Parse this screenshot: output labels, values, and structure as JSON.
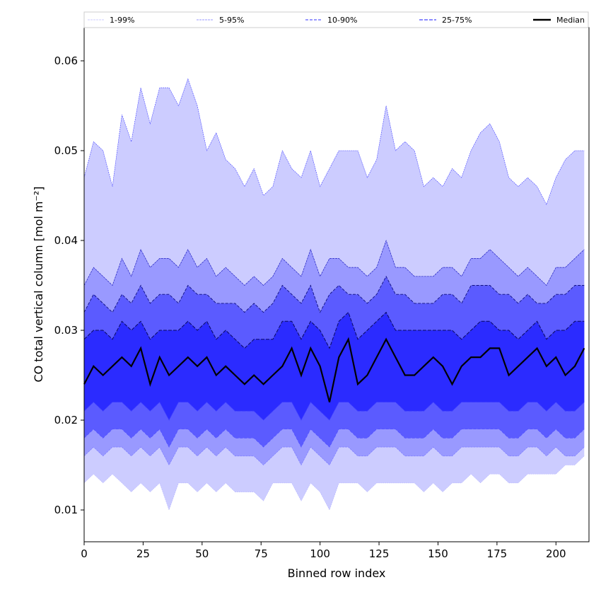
{
  "chart_data": {
    "type": "area",
    "xlabel": "Binned row index",
    "ylabel": "CO total vertical column [mol m⁻²]",
    "xlim": [
      0,
      214
    ],
    "ylim": [
      0.00646,
      0.0637
    ],
    "grid": false,
    "legend_placement": "top",
    "x_ticks": [
      "0",
      "25",
      "50",
      "75",
      "100",
      "125",
      "150",
      "175",
      "200"
    ],
    "y_ticks": [
      "0.01",
      "0.02",
      "0.03",
      "0.04",
      "0.05",
      "0.06"
    ],
    "legend": [
      "1-99%",
      "5-95%",
      "10-90%",
      "25-75%",
      "Median"
    ],
    "colors": {
      "band_1_99": "#ccccff",
      "band_5_95": "#9999ff",
      "band_10_90": "#5b5bff",
      "band_25_75": "#2b2bff",
      "median": "#000000"
    },
    "x_step": 4,
    "x_start": 0,
    "series": [
      {
        "name": "p99",
        "values": [
          0.047,
          0.051,
          0.05,
          0.046,
          0.054,
          0.051,
          0.057,
          0.053,
          0.057,
          0.057,
          0.055,
          0.058,
          0.055,
          0.05,
          0.052,
          0.049,
          0.048,
          0.046,
          0.048,
          0.045,
          0.046,
          0.05,
          0.048,
          0.047,
          0.05,
          0.046,
          0.048,
          0.05,
          0.05,
          0.05,
          0.047,
          0.049,
          0.055,
          0.05,
          0.051,
          0.05,
          0.046,
          0.047,
          0.046,
          0.048,
          0.047,
          0.05,
          0.052,
          0.053,
          0.051,
          0.047,
          0.046,
          0.047,
          0.046,
          0.044,
          0.047,
          0.049,
          0.05,
          0.05
        ]
      },
      {
        "name": "p95",
        "values": [
          0.035,
          0.037,
          0.036,
          0.035,
          0.038,
          0.036,
          0.039,
          0.037,
          0.038,
          0.038,
          0.037,
          0.039,
          0.037,
          0.038,
          0.036,
          0.037,
          0.036,
          0.035,
          0.036,
          0.035,
          0.036,
          0.038,
          0.037,
          0.036,
          0.039,
          0.036,
          0.038,
          0.038,
          0.037,
          0.037,
          0.036,
          0.037,
          0.04,
          0.037,
          0.037,
          0.036,
          0.036,
          0.036,
          0.037,
          0.037,
          0.036,
          0.038,
          0.038,
          0.039,
          0.038,
          0.037,
          0.036,
          0.037,
          0.036,
          0.035,
          0.037,
          0.037,
          0.038,
          0.039
        ]
      },
      {
        "name": "p90",
        "values": [
          0.032,
          0.034,
          0.033,
          0.032,
          0.034,
          0.033,
          0.035,
          0.033,
          0.034,
          0.034,
          0.033,
          0.035,
          0.034,
          0.034,
          0.033,
          0.033,
          0.033,
          0.032,
          0.033,
          0.032,
          0.033,
          0.035,
          0.034,
          0.033,
          0.035,
          0.032,
          0.034,
          0.035,
          0.034,
          0.034,
          0.033,
          0.034,
          0.036,
          0.034,
          0.034,
          0.033,
          0.033,
          0.033,
          0.034,
          0.034,
          0.033,
          0.035,
          0.035,
          0.035,
          0.034,
          0.034,
          0.033,
          0.034,
          0.033,
          0.033,
          0.034,
          0.034,
          0.035,
          0.035
        ]
      },
      {
        "name": "p75",
        "values": [
          0.029,
          0.03,
          0.03,
          0.029,
          0.031,
          0.03,
          0.031,
          0.029,
          0.03,
          0.03,
          0.03,
          0.031,
          0.03,
          0.031,
          0.029,
          0.03,
          0.029,
          0.028,
          0.029,
          0.029,
          0.029,
          0.031,
          0.031,
          0.029,
          0.031,
          0.03,
          0.028,
          0.031,
          0.032,
          0.029,
          0.03,
          0.031,
          0.032,
          0.03,
          0.03,
          0.03,
          0.03,
          0.03,
          0.03,
          0.03,
          0.029,
          0.03,
          0.031,
          0.031,
          0.03,
          0.03,
          0.029,
          0.03,
          0.031,
          0.029,
          0.03,
          0.03,
          0.031,
          0.031
        ]
      },
      {
        "name": "median",
        "values": [
          0.024,
          0.026,
          0.025,
          0.026,
          0.027,
          0.026,
          0.028,
          0.024,
          0.027,
          0.025,
          0.026,
          0.027,
          0.026,
          0.027,
          0.025,
          0.026,
          0.025,
          0.024,
          0.025,
          0.024,
          0.025,
          0.026,
          0.028,
          0.025,
          0.028,
          0.026,
          0.022,
          0.027,
          0.029,
          0.024,
          0.025,
          0.027,
          0.029,
          0.027,
          0.025,
          0.025,
          0.026,
          0.027,
          0.026,
          0.024,
          0.026,
          0.027,
          0.027,
          0.028,
          0.028,
          0.025,
          0.026,
          0.027,
          0.028,
          0.026,
          0.027,
          0.025,
          0.026,
          0.028
        ]
      },
      {
        "name": "p25",
        "values": [
          0.021,
          0.022,
          0.021,
          0.022,
          0.022,
          0.021,
          0.022,
          0.021,
          0.022,
          0.02,
          0.022,
          0.022,
          0.021,
          0.022,
          0.021,
          0.022,
          0.021,
          0.021,
          0.021,
          0.02,
          0.021,
          0.022,
          0.022,
          0.02,
          0.022,
          0.021,
          0.02,
          0.022,
          0.022,
          0.021,
          0.021,
          0.022,
          0.022,
          0.022,
          0.021,
          0.021,
          0.021,
          0.022,
          0.021,
          0.021,
          0.022,
          0.022,
          0.022,
          0.022,
          0.022,
          0.021,
          0.021,
          0.022,
          0.022,
          0.021,
          0.022,
          0.021,
          0.021,
          0.022
        ]
      },
      {
        "name": "p10",
        "values": [
          0.018,
          0.019,
          0.018,
          0.019,
          0.019,
          0.018,
          0.019,
          0.018,
          0.019,
          0.017,
          0.019,
          0.019,
          0.018,
          0.019,
          0.018,
          0.019,
          0.018,
          0.018,
          0.018,
          0.017,
          0.018,
          0.019,
          0.019,
          0.017,
          0.019,
          0.018,
          0.017,
          0.019,
          0.019,
          0.018,
          0.018,
          0.019,
          0.019,
          0.019,
          0.018,
          0.018,
          0.018,
          0.019,
          0.018,
          0.018,
          0.019,
          0.019,
          0.019,
          0.019,
          0.019,
          0.018,
          0.018,
          0.019,
          0.019,
          0.018,
          0.019,
          0.018,
          0.018,
          0.019
        ]
      },
      {
        "name": "p5",
        "values": [
          0.016,
          0.017,
          0.016,
          0.017,
          0.017,
          0.016,
          0.017,
          0.016,
          0.017,
          0.015,
          0.017,
          0.017,
          0.016,
          0.017,
          0.016,
          0.017,
          0.016,
          0.016,
          0.016,
          0.015,
          0.016,
          0.017,
          0.017,
          0.015,
          0.017,
          0.016,
          0.015,
          0.017,
          0.017,
          0.016,
          0.016,
          0.017,
          0.017,
          0.017,
          0.016,
          0.016,
          0.016,
          0.017,
          0.016,
          0.016,
          0.017,
          0.017,
          0.017,
          0.017,
          0.017,
          0.016,
          0.016,
          0.017,
          0.017,
          0.016,
          0.017,
          0.016,
          0.016,
          0.017
        ]
      },
      {
        "name": "p1",
        "values": [
          0.013,
          0.014,
          0.013,
          0.014,
          0.013,
          0.012,
          0.013,
          0.012,
          0.013,
          0.01,
          0.013,
          0.013,
          0.012,
          0.013,
          0.012,
          0.013,
          0.012,
          0.012,
          0.012,
          0.011,
          0.013,
          0.013,
          0.013,
          0.011,
          0.013,
          0.012,
          0.01,
          0.013,
          0.013,
          0.013,
          0.012,
          0.013,
          0.013,
          0.013,
          0.013,
          0.013,
          0.012,
          0.013,
          0.012,
          0.013,
          0.013,
          0.014,
          0.013,
          0.014,
          0.014,
          0.013,
          0.013,
          0.014,
          0.014,
          0.014,
          0.014,
          0.015,
          0.015,
          0.016
        ]
      }
    ]
  }
}
